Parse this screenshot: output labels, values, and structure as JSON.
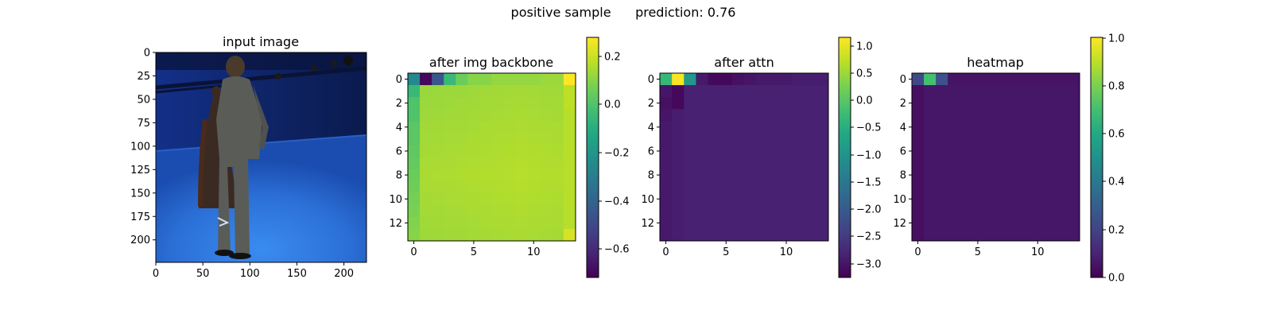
{
  "suptitle": "positive sample      prediction: 0.76",
  "panels": [
    {
      "title": "input image",
      "image": {
        "description_colors": [
          "#0b1e57",
          "#1a4ab0",
          "#2f7de0",
          "#3b2a22",
          "#5a5c58"
        ]
      },
      "xticks": [
        "0",
        "50",
        "100",
        "150",
        "200"
      ],
      "yticks": [
        "0",
        "25",
        "50",
        "75",
        "100",
        "125",
        "150",
        "175",
        "200"
      ]
    },
    {
      "title": "after img backbone",
      "xticks": [
        "0",
        "5",
        "10"
      ],
      "yticks": [
        "0",
        "2",
        "4",
        "6",
        "8",
        "10",
        "12"
      ],
      "colorbar_ticks": [
        "0.2",
        "0.0",
        "−0.2",
        "−0.4",
        "−0.6"
      ]
    },
    {
      "title": "after attn",
      "xticks": [
        "0",
        "5",
        "10"
      ],
      "yticks": [
        "0",
        "2",
        "4",
        "6",
        "8",
        "10",
        "12"
      ],
      "colorbar_ticks": [
        "1.0",
        "0.5",
        "0.0",
        "−0.5",
        "−1.0",
        "−1.5",
        "−2.0",
        "−2.5",
        "−3.0"
      ]
    },
    {
      "title": "heatmap",
      "xticks": [
        "0",
        "5",
        "10"
      ],
      "yticks": [
        "0",
        "2",
        "4",
        "6",
        "8",
        "10",
        "12"
      ],
      "colorbar_ticks": [
        "1.0",
        "0.8",
        "0.6",
        "0.4",
        "0.2",
        "0.0"
      ]
    }
  ],
  "chart_data": [
    {
      "type": "heatmap",
      "title": "after img backbone",
      "colormap": "viridis",
      "vmin": -0.72,
      "vmax": 0.28,
      "rows": 14,
      "cols": 14,
      "first_row": [
        -0.25,
        -0.7,
        -0.45,
        -0.05,
        0.05,
        0.1,
        0.1,
        0.12,
        0.12,
        0.12,
        0.12,
        0.13,
        0.13,
        0.28
      ],
      "first_col": [
        -0.25,
        -0.05,
        0.0,
        0.0,
        0.02,
        0.02,
        0.03,
        0.04,
        0.05,
        0.06,
        0.07,
        0.08,
        0.09,
        0.1
      ],
      "last_col": [
        0.28,
        0.18,
        0.18,
        0.17,
        0.17,
        0.17,
        0.17,
        0.17,
        0.17,
        0.17,
        0.17,
        0.17,
        0.17,
        0.22
      ],
      "interior": 0.12
    },
    {
      "type": "heatmap",
      "title": "after attn",
      "colormap": "viridis",
      "vmin": -3.2,
      "vmax": 1.15,
      "rows": 14,
      "cols": 14,
      "first_row": [
        -0.3,
        1.1,
        -0.9,
        -2.9,
        -3.1,
        -3.1,
        -3.0,
        -2.95,
        -2.9,
        -2.9,
        -2.9,
        -2.85,
        -2.85,
        -2.85
      ],
      "first_col": [
        -0.3,
        -2.95,
        -3.0,
        -2.95,
        -2.9,
        -2.9,
        -2.9,
        -2.9,
        -2.9,
        -2.9,
        -2.9,
        -2.9,
        -2.9,
        -2.9
      ],
      "second_col": [
        1.1,
        -3.1,
        -3.1,
        -2.85,
        -2.85,
        -2.85,
        -2.85,
        -2.85,
        -2.85,
        -2.85,
        -2.85,
        -2.85,
        -2.85,
        -2.85
      ],
      "interior": -2.8
    },
    {
      "type": "heatmap",
      "title": "heatmap",
      "colormap": "viridis",
      "vmin": 0.0,
      "vmax": 1.0,
      "rows": 14,
      "cols": 14,
      "first_row": [
        0.22,
        0.7,
        0.25,
        0.05,
        0.05,
        0.05,
        0.05,
        0.05,
        0.05,
        0.05,
        0.05,
        0.05,
        0.05,
        0.05
      ],
      "first_col": [
        0.22,
        0.04,
        0.04,
        0.04,
        0.04,
        0.04,
        0.04,
        0.04,
        0.04,
        0.04,
        0.04,
        0.04,
        0.04,
        0.04
      ],
      "interior": 0.06
    }
  ]
}
